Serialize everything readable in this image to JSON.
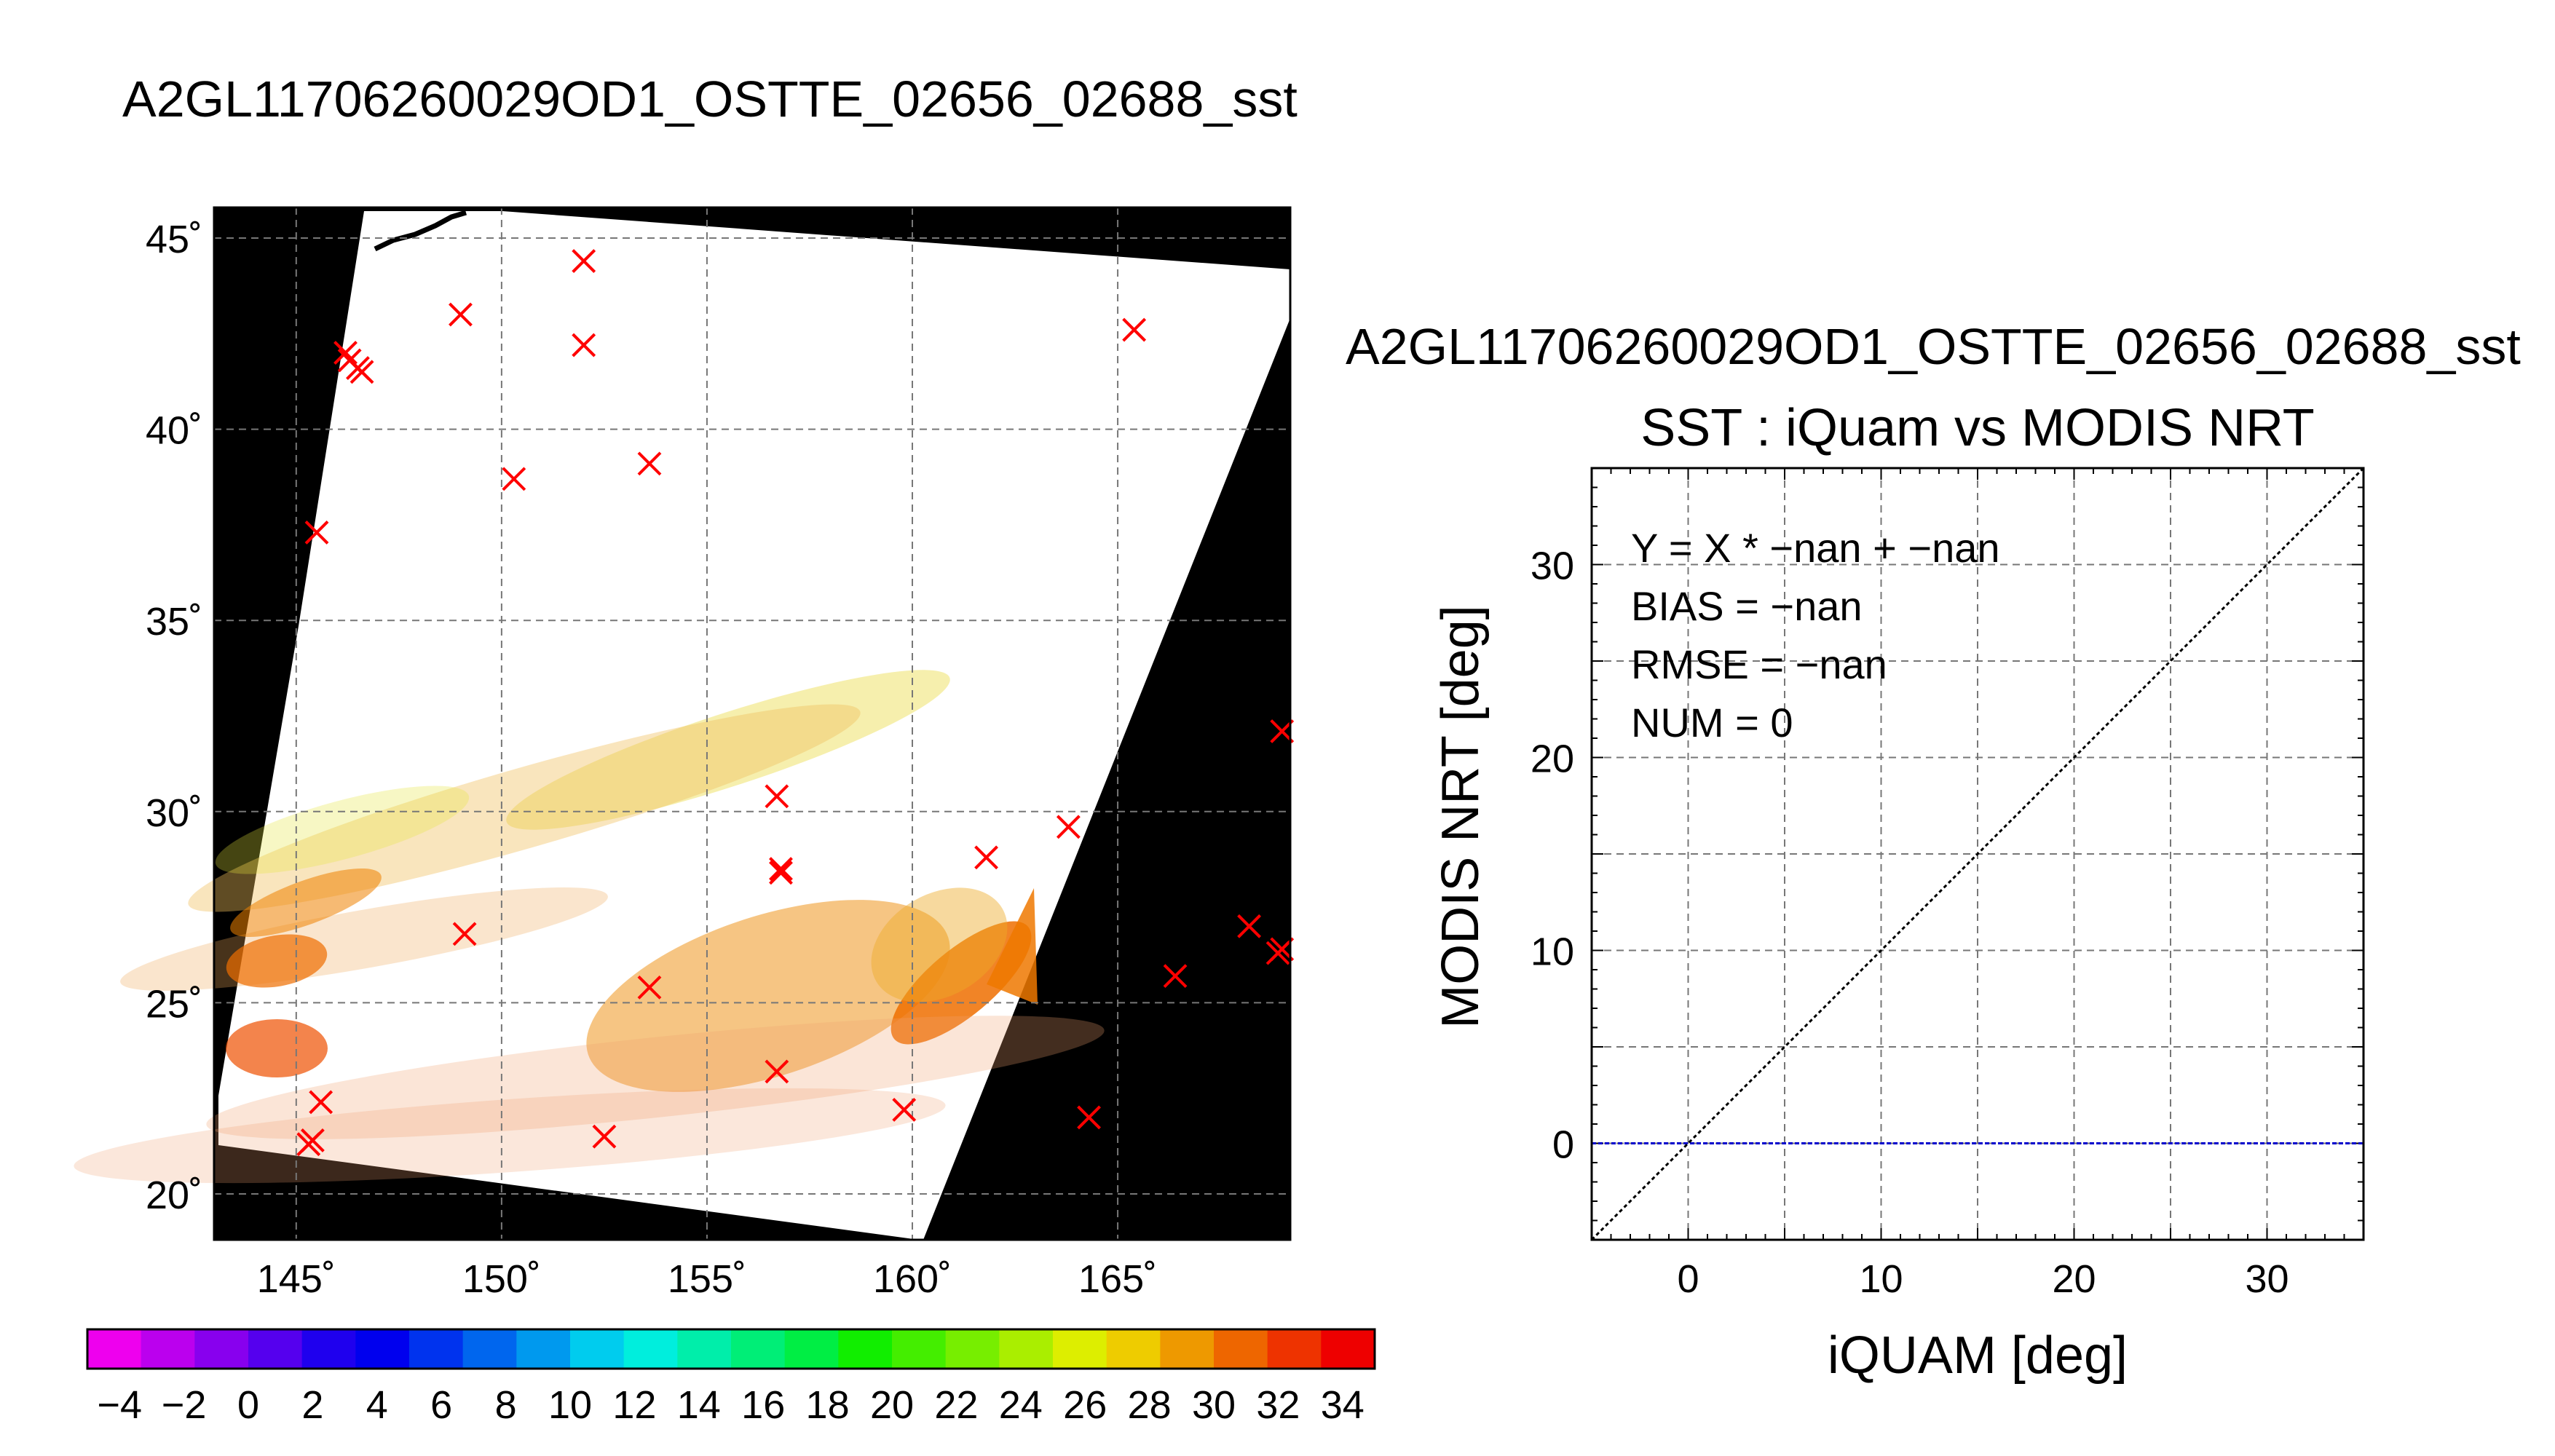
{
  "map_panel": {
    "title": "A2GL11706260029OD1_OSTTE_02656_02688_sst",
    "lon_ticks": [
      145,
      150,
      155,
      160,
      165
    ],
    "lat_ticks": [
      20,
      25,
      30,
      35,
      40,
      45
    ],
    "lon_labels": [
      "145˚",
      "150˚",
      "155˚",
      "160˚",
      "165˚"
    ],
    "lat_labels": [
      "20˚",
      "25˚",
      "30˚",
      "35˚",
      "40˚",
      "45˚"
    ],
    "lon_range": [
      143,
      169.2
    ],
    "lat_range": [
      18.8,
      45.8
    ],
    "no_data_color": "#000000",
    "background_color": "#ffffff",
    "iquam_marker_color": "#ff0000",
    "iquam_points": [
      [
        152,
        44.4
      ],
      [
        149,
        43
      ],
      [
        152,
        42.2
      ],
      [
        146.2,
        42
      ],
      [
        146.3,
        41.8
      ],
      [
        146.5,
        41.6
      ],
      [
        146.6,
        41.5
      ],
      [
        150.3,
        38.7
      ],
      [
        153.6,
        39.1
      ],
      [
        145.5,
        37.3
      ],
      [
        165.4,
        42.6
      ],
      [
        169,
        32.1
      ],
      [
        156.7,
        30.4
      ],
      [
        156.8,
        28.5
      ],
      [
        156.8,
        28.4
      ],
      [
        161.8,
        28.8
      ],
      [
        163.8,
        29.6
      ],
      [
        149.1,
        26.8
      ],
      [
        153.6,
        25.4
      ],
      [
        168.2,
        27
      ],
      [
        166.4,
        25.7
      ],
      [
        169.0,
        26.4
      ],
      [
        168.9,
        26.3
      ],
      [
        145.6,
        22.4
      ],
      [
        145.4,
        21.4
      ],
      [
        145.3,
        21.3
      ],
      [
        152.5,
        21.5
      ],
      [
        156.7,
        23.2
      ],
      [
        159.8,
        22.2
      ],
      [
        164.3,
        22
      ]
    ],
    "colorbar": {
      "min": -5,
      "max": 35,
      "tick_values": [
        -4,
        -2,
        0,
        2,
        4,
        6,
        8,
        10,
        12,
        14,
        16,
        18,
        20,
        22,
        24,
        26,
        28,
        30,
        32,
        34
      ],
      "tick_labels": [
        "−4",
        "−2",
        "0",
        "2",
        "4",
        "6",
        "8",
        "10",
        "12",
        "14",
        "16",
        "18",
        "20",
        "22",
        "24",
        "26",
        "28",
        "30",
        "32",
        "34"
      ],
      "colors": [
        "#ee00ee",
        "#bb00ee",
        "#8800ee",
        "#5500ee",
        "#1f00ee",
        "#0000ee",
        "#0033ee",
        "#0066ee",
        "#0099ee",
        "#00ccee",
        "#00eedd",
        "#00eeaa",
        "#00ee77",
        "#00ee44",
        "#11ee00",
        "#44ee00",
        "#77ee00",
        "#aaee00",
        "#ddee00",
        "#eecc00",
        "#ee9900",
        "#ee6600",
        "#ee3300",
        "#ee0000"
      ]
    }
  },
  "chart_data": {
    "type": "scatter",
    "title": "SST : iQuam vs MODIS NRT",
    "subtitle": "A2GL11706260029OD1_OSTTE_02656_02688_sst",
    "xlabel": "iQUAM [deg]",
    "ylabel": "MODIS NRT [deg]",
    "xlim": [
      -5,
      35
    ],
    "ylim": [
      -5,
      35
    ],
    "x_ticks": [
      0,
      10,
      20,
      30
    ],
    "y_ticks": [
      0,
      10,
      20,
      30
    ],
    "grid": true,
    "series": [],
    "stats": [
      "Y = X * −nan + −nan",
      "BIAS = −nan",
      "RMSE = −nan",
      "NUM = 0"
    ],
    "reference_line_color": "#000000",
    "zero_line_color": "#0000cc"
  }
}
